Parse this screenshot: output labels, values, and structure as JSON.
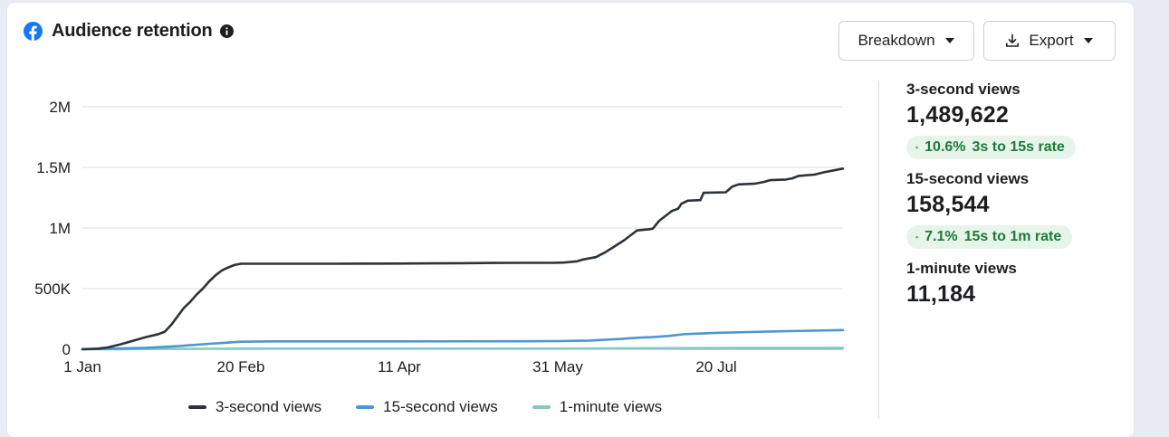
{
  "header": {
    "title": "Audience retention",
    "brand_icon": "facebook-icon",
    "info_icon": "info-icon"
  },
  "toolbar": {
    "breakdown_label": "Breakdown",
    "export_label": "Export"
  },
  "legend": [
    {
      "name": "3-second views",
      "color": "#2d333a"
    },
    {
      "name": "15-second views",
      "color": "#4e96cf"
    },
    {
      "name": "1-minute views",
      "color": "#84c9c1"
    }
  ],
  "stats": {
    "three_second": {
      "label": "3-second views",
      "value": "1,489,622"
    },
    "rate_3s_15s": {
      "percent": "10.6%",
      "label": "3s to 15s rate"
    },
    "fifteen_second": {
      "label": "15-second views",
      "value": "158,544"
    },
    "rate_15s_1m": {
      "percent": "7.1%",
      "label": "15s to 1m rate"
    },
    "one_minute": {
      "label": "1-minute views",
      "value": "11,184"
    }
  },
  "chart_data": {
    "type": "line",
    "title": "",
    "xlabel": "",
    "ylabel": "",
    "ylim": [
      0,
      2000000
    ],
    "yticks": [
      {
        "value": 0,
        "label": "0"
      },
      {
        "value": 500000,
        "label": "500K"
      },
      {
        "value": 1000000,
        "label": "1M"
      },
      {
        "value": 1500000,
        "label": "1.5M"
      },
      {
        "value": 2000000,
        "label": "2M"
      }
    ],
    "xlim": [
      0,
      240
    ],
    "xticks": [
      {
        "value": 0,
        "label": "1 Jan"
      },
      {
        "value": 50,
        "label": "20 Feb"
      },
      {
        "value": 100,
        "label": "11 Apr"
      },
      {
        "value": 150,
        "label": "31 May"
      },
      {
        "value": 200,
        "label": "20 Jul"
      }
    ],
    "grid": true,
    "legend_position": "bottom",
    "series": [
      {
        "name": "3-second views",
        "color": "#2d333a",
        "points": [
          [
            0,
            0
          ],
          [
            5,
            5000
          ],
          [
            8,
            15000
          ],
          [
            12,
            40000
          ],
          [
            16,
            70000
          ],
          [
            20,
            100000
          ],
          [
            24,
            125000
          ],
          [
            26,
            145000
          ],
          [
            28,
            200000
          ],
          [
            30,
            270000
          ],
          [
            32,
            340000
          ],
          [
            34,
            390000
          ],
          [
            36,
            450000
          ],
          [
            38,
            500000
          ],
          [
            40,
            560000
          ],
          [
            42,
            610000
          ],
          [
            44,
            650000
          ],
          [
            46,
            675000
          ],
          [
            48,
            695000
          ],
          [
            50,
            705000
          ],
          [
            60,
            705000
          ],
          [
            80,
            705000
          ],
          [
            100,
            707000
          ],
          [
            110,
            708000
          ],
          [
            120,
            710000
          ],
          [
            130,
            712000
          ],
          [
            140,
            713000
          ],
          [
            148,
            713000
          ],
          [
            152,
            715000
          ],
          [
            156,
            725000
          ],
          [
            158,
            740000
          ],
          [
            162,
            760000
          ],
          [
            165,
            800000
          ],
          [
            168,
            850000
          ],
          [
            171,
            900000
          ],
          [
            173,
            940000
          ],
          [
            175,
            980000
          ],
          [
            179,
            990000
          ],
          [
            180,
            995000
          ],
          [
            182,
            1060000
          ],
          [
            184,
            1100000
          ],
          [
            186,
            1140000
          ],
          [
            188,
            1160000
          ],
          [
            189,
            1200000
          ],
          [
            191,
            1225000
          ],
          [
            195,
            1230000
          ],
          [
            196,
            1290000
          ],
          [
            203,
            1295000
          ],
          [
            205,
            1340000
          ],
          [
            207,
            1360000
          ],
          [
            212,
            1365000
          ],
          [
            215,
            1380000
          ],
          [
            217,
            1395000
          ],
          [
            222,
            1400000
          ],
          [
            224,
            1410000
          ],
          [
            226,
            1430000
          ],
          [
            231,
            1440000
          ],
          [
            234,
            1460000
          ],
          [
            238,
            1480000
          ],
          [
            240,
            1489622
          ]
        ]
      },
      {
        "name": "15-second views",
        "color": "#4e96cf",
        "points": [
          [
            0,
            0
          ],
          [
            10,
            5000
          ],
          [
            20,
            12000
          ],
          [
            30,
            25000
          ],
          [
            40,
            45000
          ],
          [
            50,
            62000
          ],
          [
            60,
            65000
          ],
          [
            100,
            65000
          ],
          [
            140,
            66000
          ],
          [
            150,
            67000
          ],
          [
            160,
            72000
          ],
          [
            170,
            85000
          ],
          [
            175,
            95000
          ],
          [
            180,
            100000
          ],
          [
            185,
            110000
          ],
          [
            190,
            125000
          ],
          [
            200,
            135000
          ],
          [
            210,
            142000
          ],
          [
            220,
            148000
          ],
          [
            230,
            153000
          ],
          [
            240,
            158544
          ]
        ]
      },
      {
        "name": "1-minute views",
        "color": "#84c9c1",
        "points": [
          [
            0,
            0
          ],
          [
            10,
            1000
          ],
          [
            20,
            2500
          ],
          [
            40,
            4000
          ],
          [
            60,
            5000
          ],
          [
            100,
            5200
          ],
          [
            150,
            5500
          ],
          [
            170,
            7000
          ],
          [
            190,
            9000
          ],
          [
            210,
            10200
          ],
          [
            240,
            11184
          ]
        ]
      }
    ]
  }
}
